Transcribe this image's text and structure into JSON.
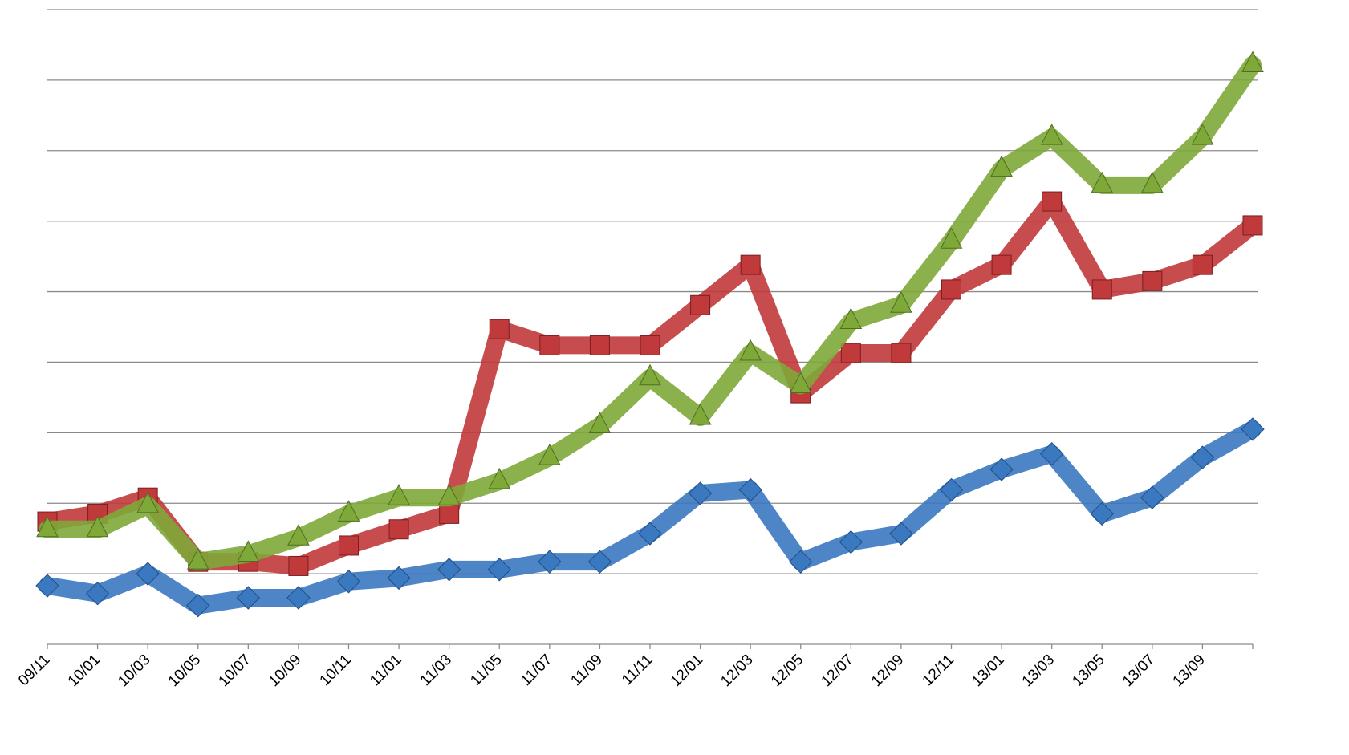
{
  "chart_data": {
    "type": "line",
    "categories": [
      "09/11",
      "10/01",
      "10/03",
      "10/05",
      "10/07",
      "10/09",
      "10/11",
      "11/01",
      "11/03",
      "11/05",
      "11/07",
      "11/09",
      "11/11",
      "12/01",
      "12/03",
      "12/05",
      "12/07",
      "12/09",
      "12/11",
      "13/01",
      "13/03",
      "13/05",
      "13/07",
      "13/09",
      null
    ],
    "series": [
      {
        "color": "#3a78c0",
        "marker": "diamond",
        "values": [
          0.83,
          0.72,
          1.0,
          0.55,
          0.66,
          0.66,
          0.89,
          0.94,
          1.06,
          1.06,
          1.17,
          1.17,
          1.57,
          2.14,
          2.19,
          1.17,
          1.45,
          1.57,
          2.19,
          2.48,
          2.7,
          1.85,
          2.08,
          2.65,
          3.05
        ]
      },
      {
        "color": "#c0393b",
        "marker": "square",
        "values": [
          1.74,
          1.85,
          2.08,
          1.17,
          1.17,
          1.11,
          1.4,
          1.63,
          1.85,
          4.47,
          4.24,
          4.24,
          4.24,
          4.81,
          5.38,
          3.56,
          4.13,
          4.13,
          5.03,
          5.38,
          6.28,
          5.03,
          5.15,
          5.38,
          5.94
        ]
      },
      {
        "color": "#7ea838",
        "marker": "triangle",
        "values": [
          1.63,
          1.63,
          1.97,
          1.17,
          1.28,
          1.51,
          1.85,
          2.08,
          2.08,
          2.31,
          2.65,
          3.1,
          3.78,
          3.22,
          4.13,
          3.67,
          4.58,
          4.81,
          5.72,
          6.74,
          7.19,
          6.51,
          6.51,
          7.19,
          8.22
        ]
      }
    ],
    "ylim": [
      0,
      9
    ],
    "yticks": [
      1,
      2,
      3,
      4,
      5,
      6,
      7,
      8,
      9
    ],
    "grid": true
  }
}
